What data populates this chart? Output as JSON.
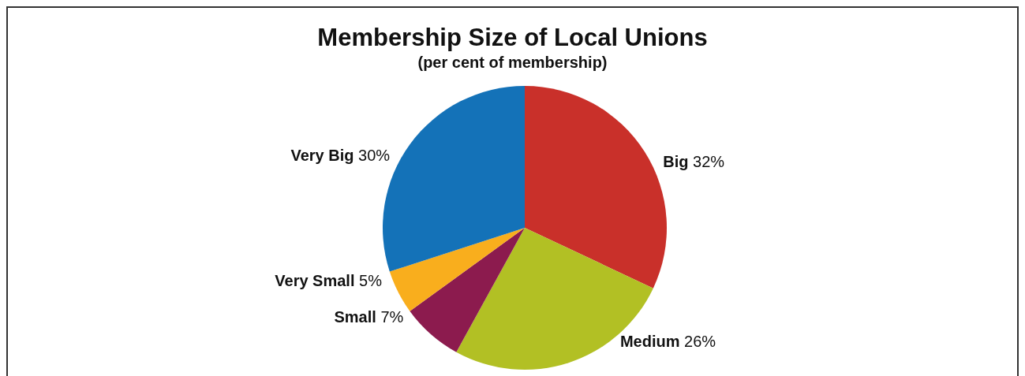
{
  "chart_data": {
    "type": "pie",
    "title": "Membership Size of Local Unions",
    "subtitle": "(per cent of membership)",
    "categories": [
      "Big",
      "Medium",
      "Small",
      "Very Small",
      "Very Big"
    ],
    "values": [
      32,
      26,
      7,
      5,
      30
    ],
    "value_labels": [
      "32%",
      "26%",
      "7%",
      "5%",
      "30%"
    ],
    "colors": [
      "#c9302a",
      "#b2c024",
      "#8c1b4e",
      "#f9ae1d",
      "#1472b8"
    ]
  }
}
